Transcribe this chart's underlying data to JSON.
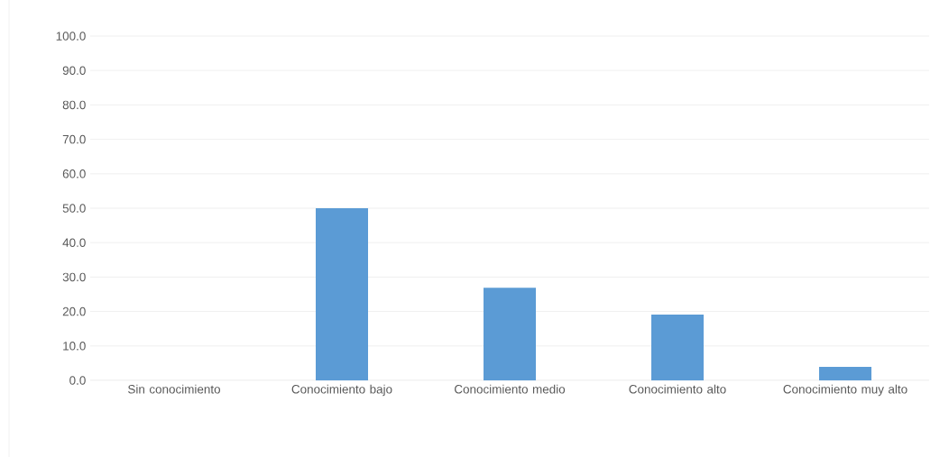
{
  "chart_data": {
    "type": "bar",
    "categories": [
      "Sin conocimiento",
      "Conocimiento bajo",
      "Conocimiento medio",
      "Conocimiento alto",
      "Conocimiento muy alto"
    ],
    "values": [
      0,
      50.0,
      26.9,
      19.1,
      3.9
    ],
    "color": "#5b9bd5",
    "ylim": [
      0,
      100
    ],
    "yticks": [
      {
        "value": 0,
        "label": "0.0"
      },
      {
        "value": 10,
        "label": "10.0"
      },
      {
        "value": 20,
        "label": "20.0"
      },
      {
        "value": 30,
        "label": "30.0"
      },
      {
        "value": 40,
        "label": "40.0"
      },
      {
        "value": 50,
        "label": "50.0"
      },
      {
        "value": 60,
        "label": "60.0"
      },
      {
        "value": 70,
        "label": "70.0"
      },
      {
        "value": 80,
        "label": "80.0"
      },
      {
        "value": 90,
        "label": "90.0"
      },
      {
        "value": 100,
        "label": "100.0"
      }
    ],
    "grid": "y"
  }
}
